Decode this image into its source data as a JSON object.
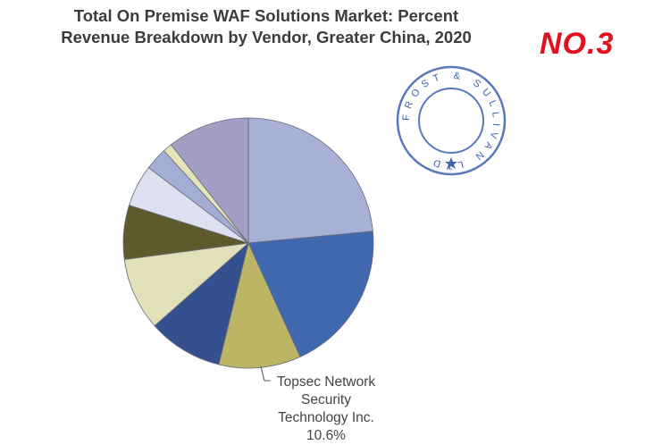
{
  "chart_data": {
    "type": "pie",
    "title_lines": [
      "Total On Premise WAF Solutions Market: Percent",
      "Revenue Breakdown by Vendor, Greater China, 2020"
    ],
    "start_angle": "12 o'clock",
    "direction": "clockwise",
    "slices": [
      {
        "value": 23.5,
        "color": "#a9b0d6"
      },
      {
        "value": 19.7,
        "color": "#3f68ae"
      },
      {
        "value": 10.6,
        "color": "#bdb566",
        "label": "Topsec Network Security Technology Inc.",
        "value_label": "10.6%"
      },
      {
        "value": 9.7,
        "color": "#35508f"
      },
      {
        "value": 9.4,
        "color": "#e2e0b8"
      },
      {
        "value": 7.0,
        "color": "#5f5a2c"
      },
      {
        "value": 5.4,
        "color": "#dde0f0"
      },
      {
        "value": 2.9,
        "color": "#a4aed4"
      },
      {
        "value": 1.2,
        "color": "#e4e4b8"
      },
      {
        "value": 10.6,
        "color": "#a39fc4"
      }
    ]
  },
  "badge": "NO.3",
  "stamp": {
    "text": "FROST & SULLIVAN LTD",
    "color": "#3d62b0"
  }
}
